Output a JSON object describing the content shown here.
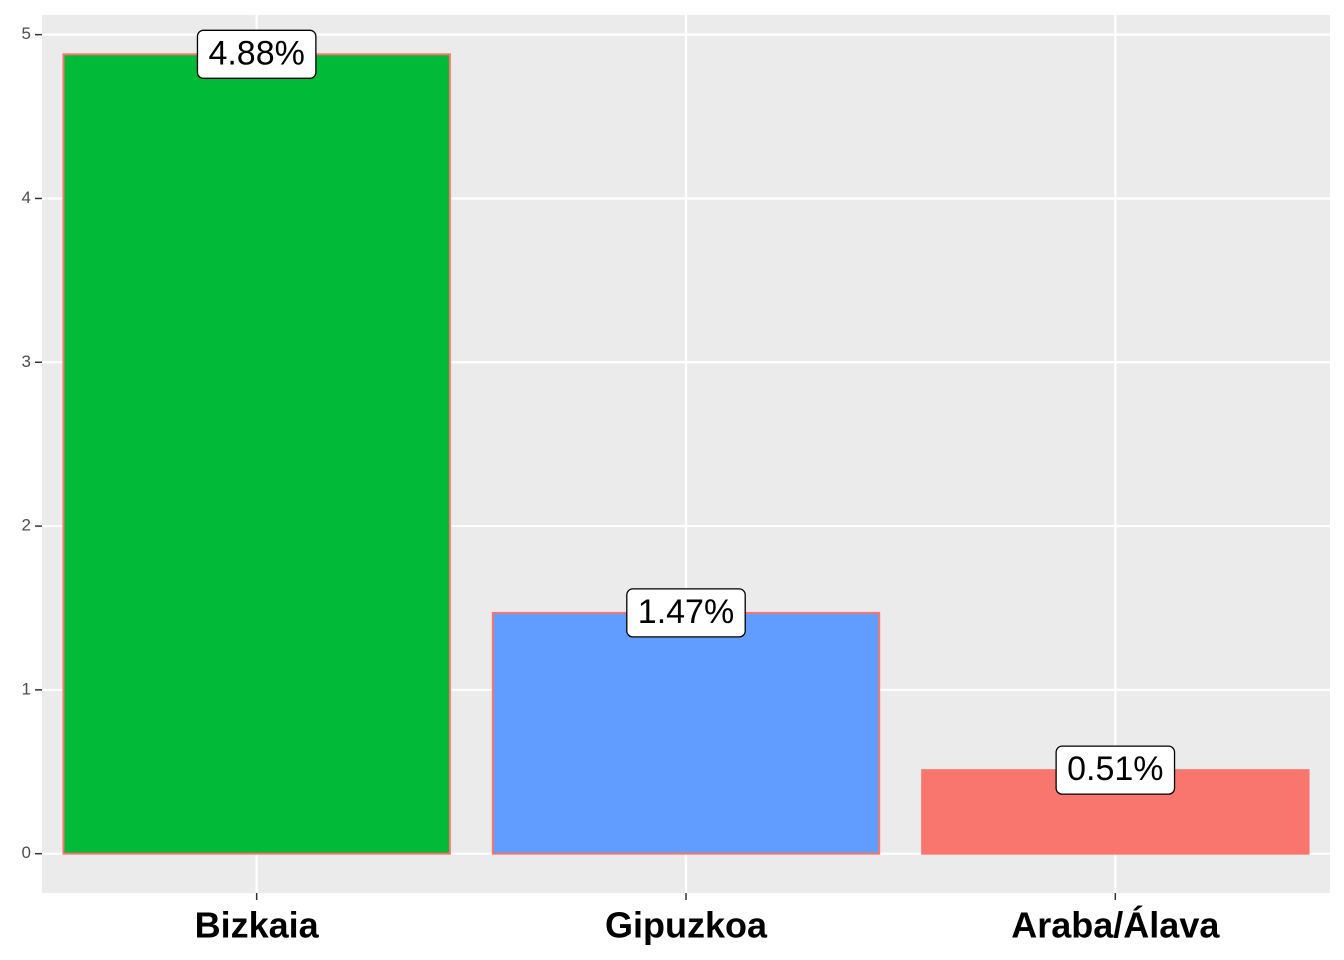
{
  "chart_data": {
    "type": "bar",
    "categories": [
      "Bizkaia",
      "Gipuzkoa",
      "Araba/Álava"
    ],
    "values": [
      4.88,
      1.47,
      0.51
    ],
    "value_labels": [
      "4.88%",
      "1.47%",
      "0.51%"
    ],
    "colors": [
      "#00ba38",
      "#619cff",
      "#f8766d"
    ],
    "outline_color": "#f8766d",
    "ylim": [
      -0.24,
      5.12
    ],
    "yticks": [
      0,
      1,
      2,
      3,
      4,
      5
    ],
    "grid": true
  }
}
